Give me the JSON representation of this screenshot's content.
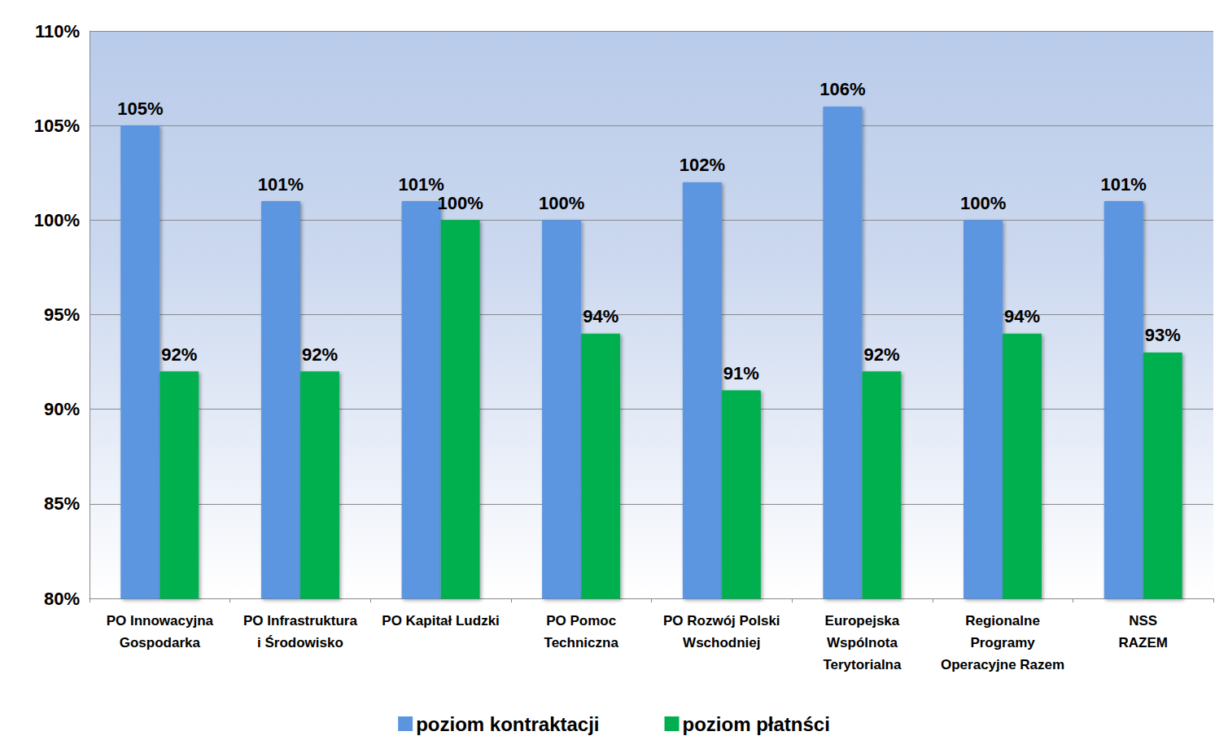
{
  "chart_data": {
    "type": "bar",
    "categories": [
      "PO Innowacyjna\nGospodarka",
      "PO Infrastruktura\ni Środowisko",
      "PO Kapitał Ludzki",
      "PO Pomoc\nTechniczna",
      "PO Rozwój Polski\nWschodniej",
      "Europejska\nWspólnota\nTerytorialna",
      "Regionalne\nProgramy\nOperacyjne Razem",
      "NSS\nRAZEM"
    ],
    "series": [
      {
        "name": "poziom kontraktacji",
        "color": "#5b95e0",
        "values": [
          105,
          101,
          101,
          100,
          102,
          106,
          100,
          101
        ],
        "value_labels": [
          "105%",
          "101%",
          "101%",
          "100%",
          "102%",
          "106%",
          "100%",
          "101%"
        ]
      },
      {
        "name": "poziom płatnści",
        "color": "#00b050",
        "values": [
          92,
          92,
          100,
          94,
          91,
          92,
          94,
          93
        ],
        "value_labels": [
          "92%",
          "92%",
          "100%",
          "94%",
          "91%",
          "92%",
          "94%",
          "93%"
        ]
      }
    ],
    "ylim": [
      80,
      110
    ],
    "yticks": [
      {
        "value": 80,
        "label": "80%"
      },
      {
        "value": 85,
        "label": "85%"
      },
      {
        "value": 90,
        "label": "90%"
      },
      {
        "value": 95,
        "label": "95%"
      },
      {
        "value": 100,
        "label": "100%"
      },
      {
        "value": 105,
        "label": "105%"
      },
      {
        "value": 110,
        "label": "110%"
      }
    ],
    "grid": true,
    "legend": "bottom",
    "data_labels": true
  }
}
